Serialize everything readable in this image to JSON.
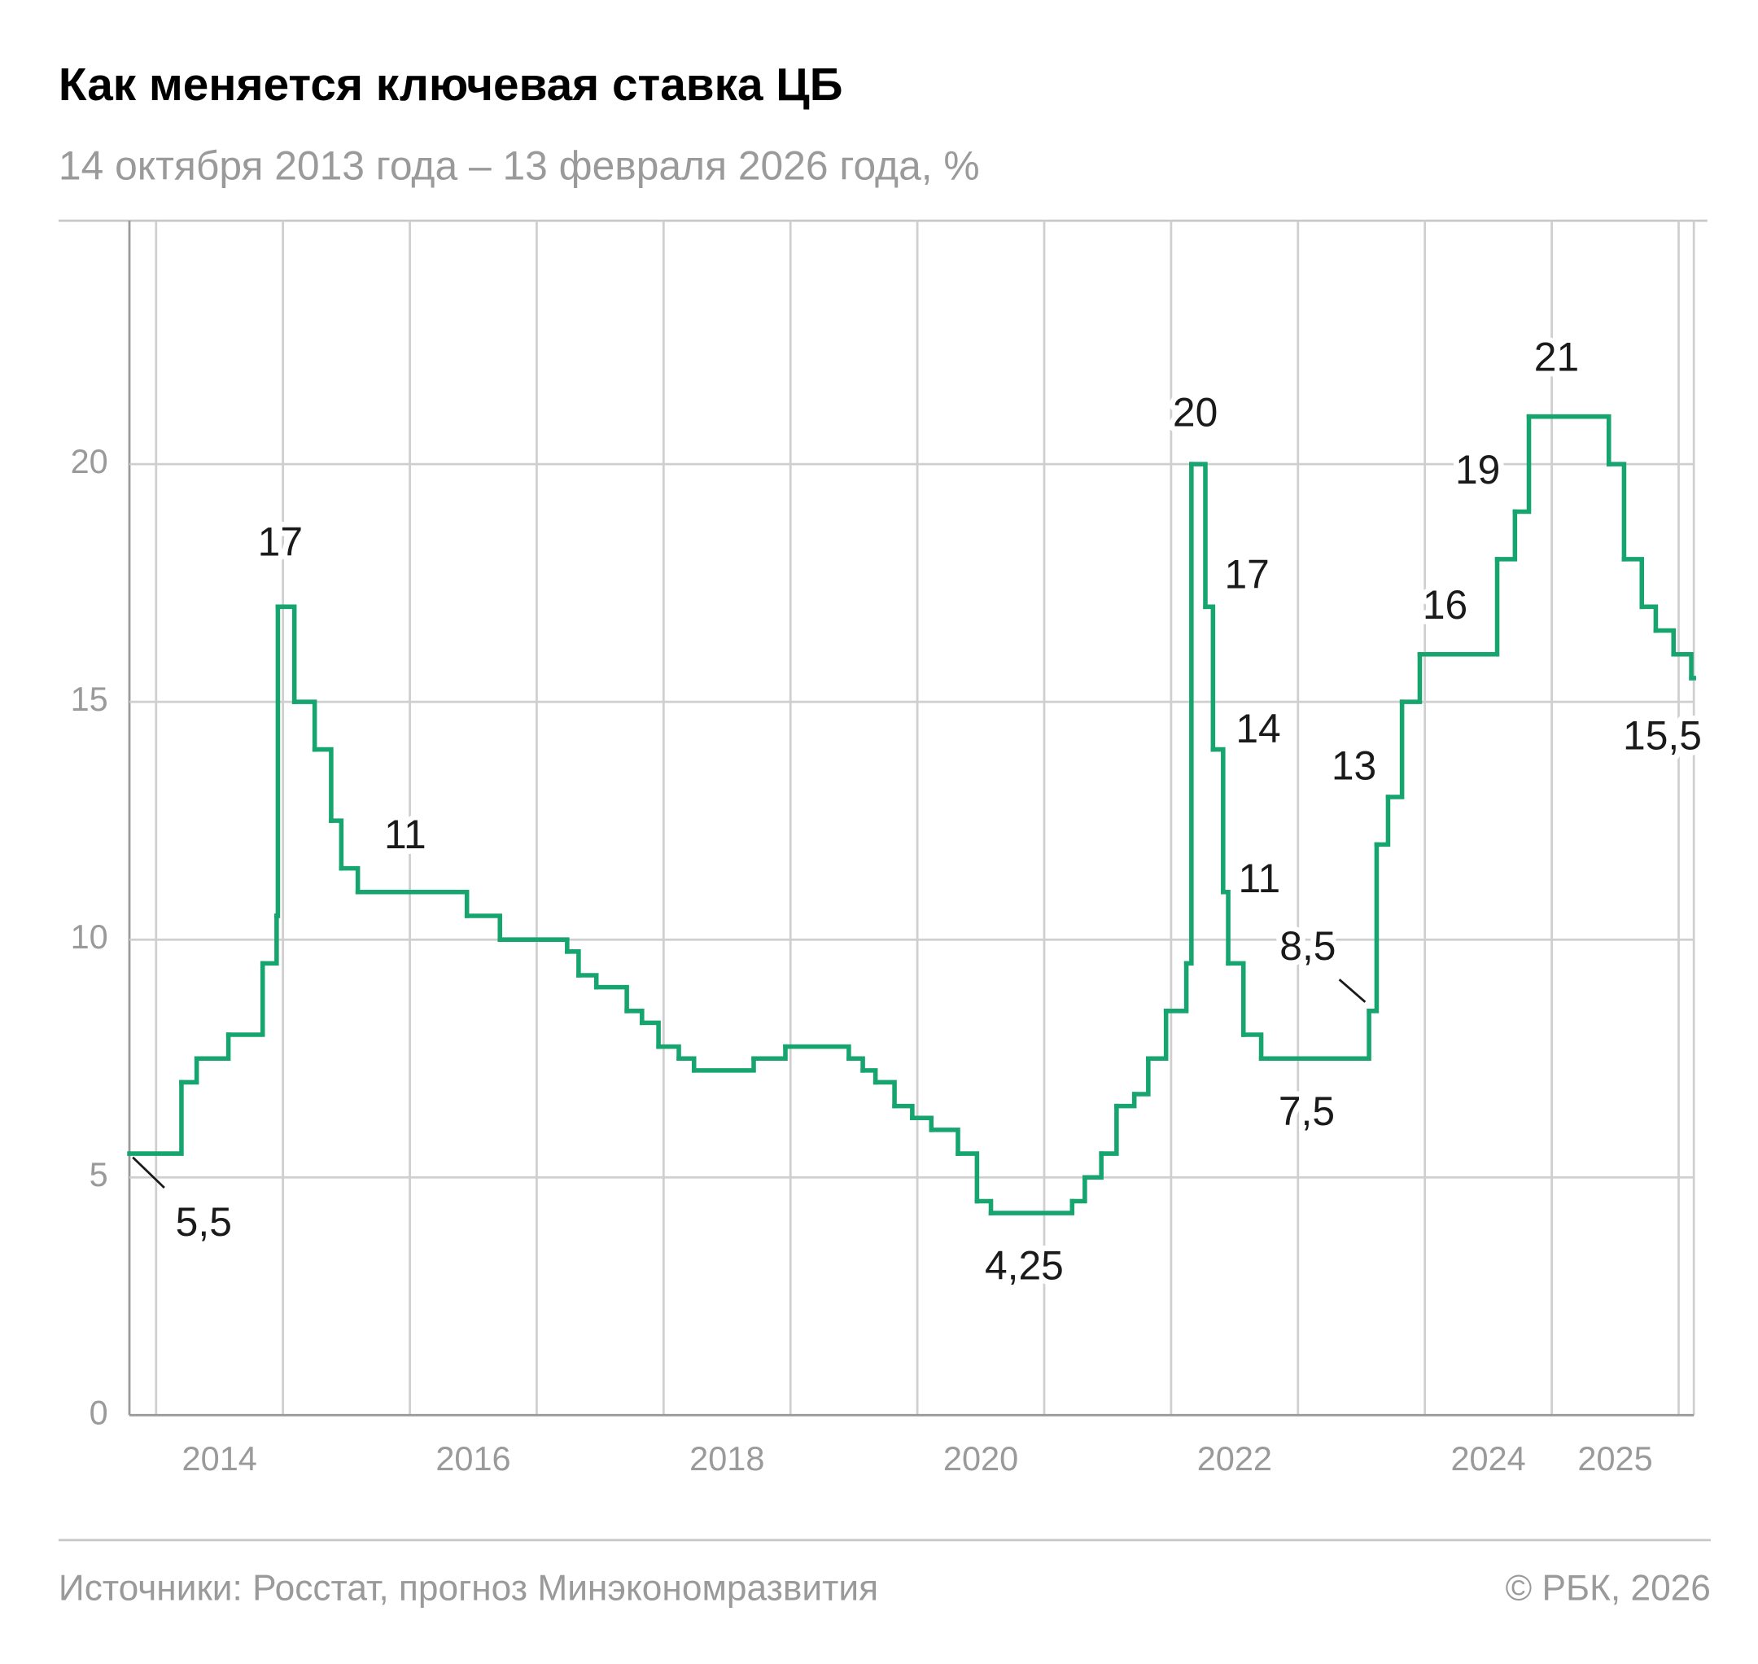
{
  "chart_data": {
    "type": "step",
    "title": "Как меняется ключевая ставка ЦБ",
    "subtitle": "14 октября 2013 года – 13 февраля 2026 года, %",
    "source": "Источники: Росстат, прогноз Минэкономразвития",
    "credit": "© РБК, 2026",
    "color": "#16a56f",
    "xlim": [
      2013.79,
      2026.12
    ],
    "ylim": [
      0,
      25
    ],
    "yticks": [
      0,
      5,
      10,
      15,
      20
    ],
    "xgrid": [
      2014,
      2015,
      2016,
      2017,
      2018,
      2019,
      2020,
      2021,
      2022,
      2023,
      2024,
      2025,
      2026
    ],
    "xticks": [
      {
        "value": 2014.5,
        "label": "2014"
      },
      {
        "value": 2016.5,
        "label": "2016"
      },
      {
        "value": 2018.5,
        "label": "2018"
      },
      {
        "value": 2020.5,
        "label": "2020"
      },
      {
        "value": 2022.5,
        "label": "2022"
      },
      {
        "value": 2024.5,
        "label": "2024"
      },
      {
        "value": 2025.5,
        "label": "2025"
      }
    ],
    "grid": true,
    "x": [
      2013.79,
      2014.2,
      2014.32,
      2014.57,
      2014.84,
      2014.95,
      2014.96,
      2015.09,
      2015.25,
      2015.38,
      2015.46,
      2015.59,
      2016.45,
      2016.71,
      2017.24,
      2017.33,
      2017.47,
      2017.71,
      2017.83,
      2017.96,
      2018.12,
      2018.24,
      2018.71,
      2018.96,
      2019.46,
      2019.57,
      2019.67,
      2019.82,
      2019.96,
      2020.11,
      2020.32,
      2020.47,
      2020.58,
      2021.22,
      2021.32,
      2021.45,
      2021.57,
      2021.71,
      2021.82,
      2021.96,
      2022.12,
      2022.16,
      2022.27,
      2022.33,
      2022.41,
      2022.45,
      2022.57,
      2022.71,
      2023.56,
      2023.62,
      2023.71,
      2023.82,
      2023.96,
      2024.57,
      2024.71,
      2024.82,
      2025.45,
      2025.57,
      2025.71,
      2025.82,
      2025.96,
      2026.1
    ],
    "values": [
      5.5,
      7,
      7.5,
      8,
      9.5,
      10.5,
      17,
      15,
      14,
      12.5,
      11.5,
      11,
      10.5,
      10,
      9.75,
      9.25,
      9,
      8.5,
      8.25,
      7.75,
      7.5,
      7.25,
      7.5,
      7.75,
      7.5,
      7.25,
      7,
      6.5,
      6.25,
      6,
      5.5,
      4.5,
      4.25,
      4.5,
      5,
      5.5,
      6.5,
      6.75,
      7.5,
      8.5,
      9.5,
      20,
      17,
      14,
      11,
      9.5,
      8,
      7.5,
      8.5,
      12,
      13,
      15,
      16,
      18,
      19,
      21,
      20,
      18,
      17,
      16.5,
      16,
      15.5
    ],
    "value_labels": [
      "5,5",
      null,
      null,
      null,
      null,
      null,
      "17",
      null,
      null,
      null,
      null,
      "11",
      null,
      null,
      null,
      null,
      null,
      null,
      null,
      null,
      null,
      null,
      null,
      null,
      null,
      null,
      null,
      null,
      null,
      null,
      null,
      null,
      "4,25",
      null,
      null,
      null,
      null,
      null,
      null,
      null,
      null,
      "20",
      "17",
      "14",
      "11",
      null,
      null,
      "7,5",
      "8,5",
      null,
      "13",
      null,
      "16",
      null,
      "19",
      "21",
      null,
      null,
      null,
      null,
      null,
      "15,5"
    ]
  }
}
